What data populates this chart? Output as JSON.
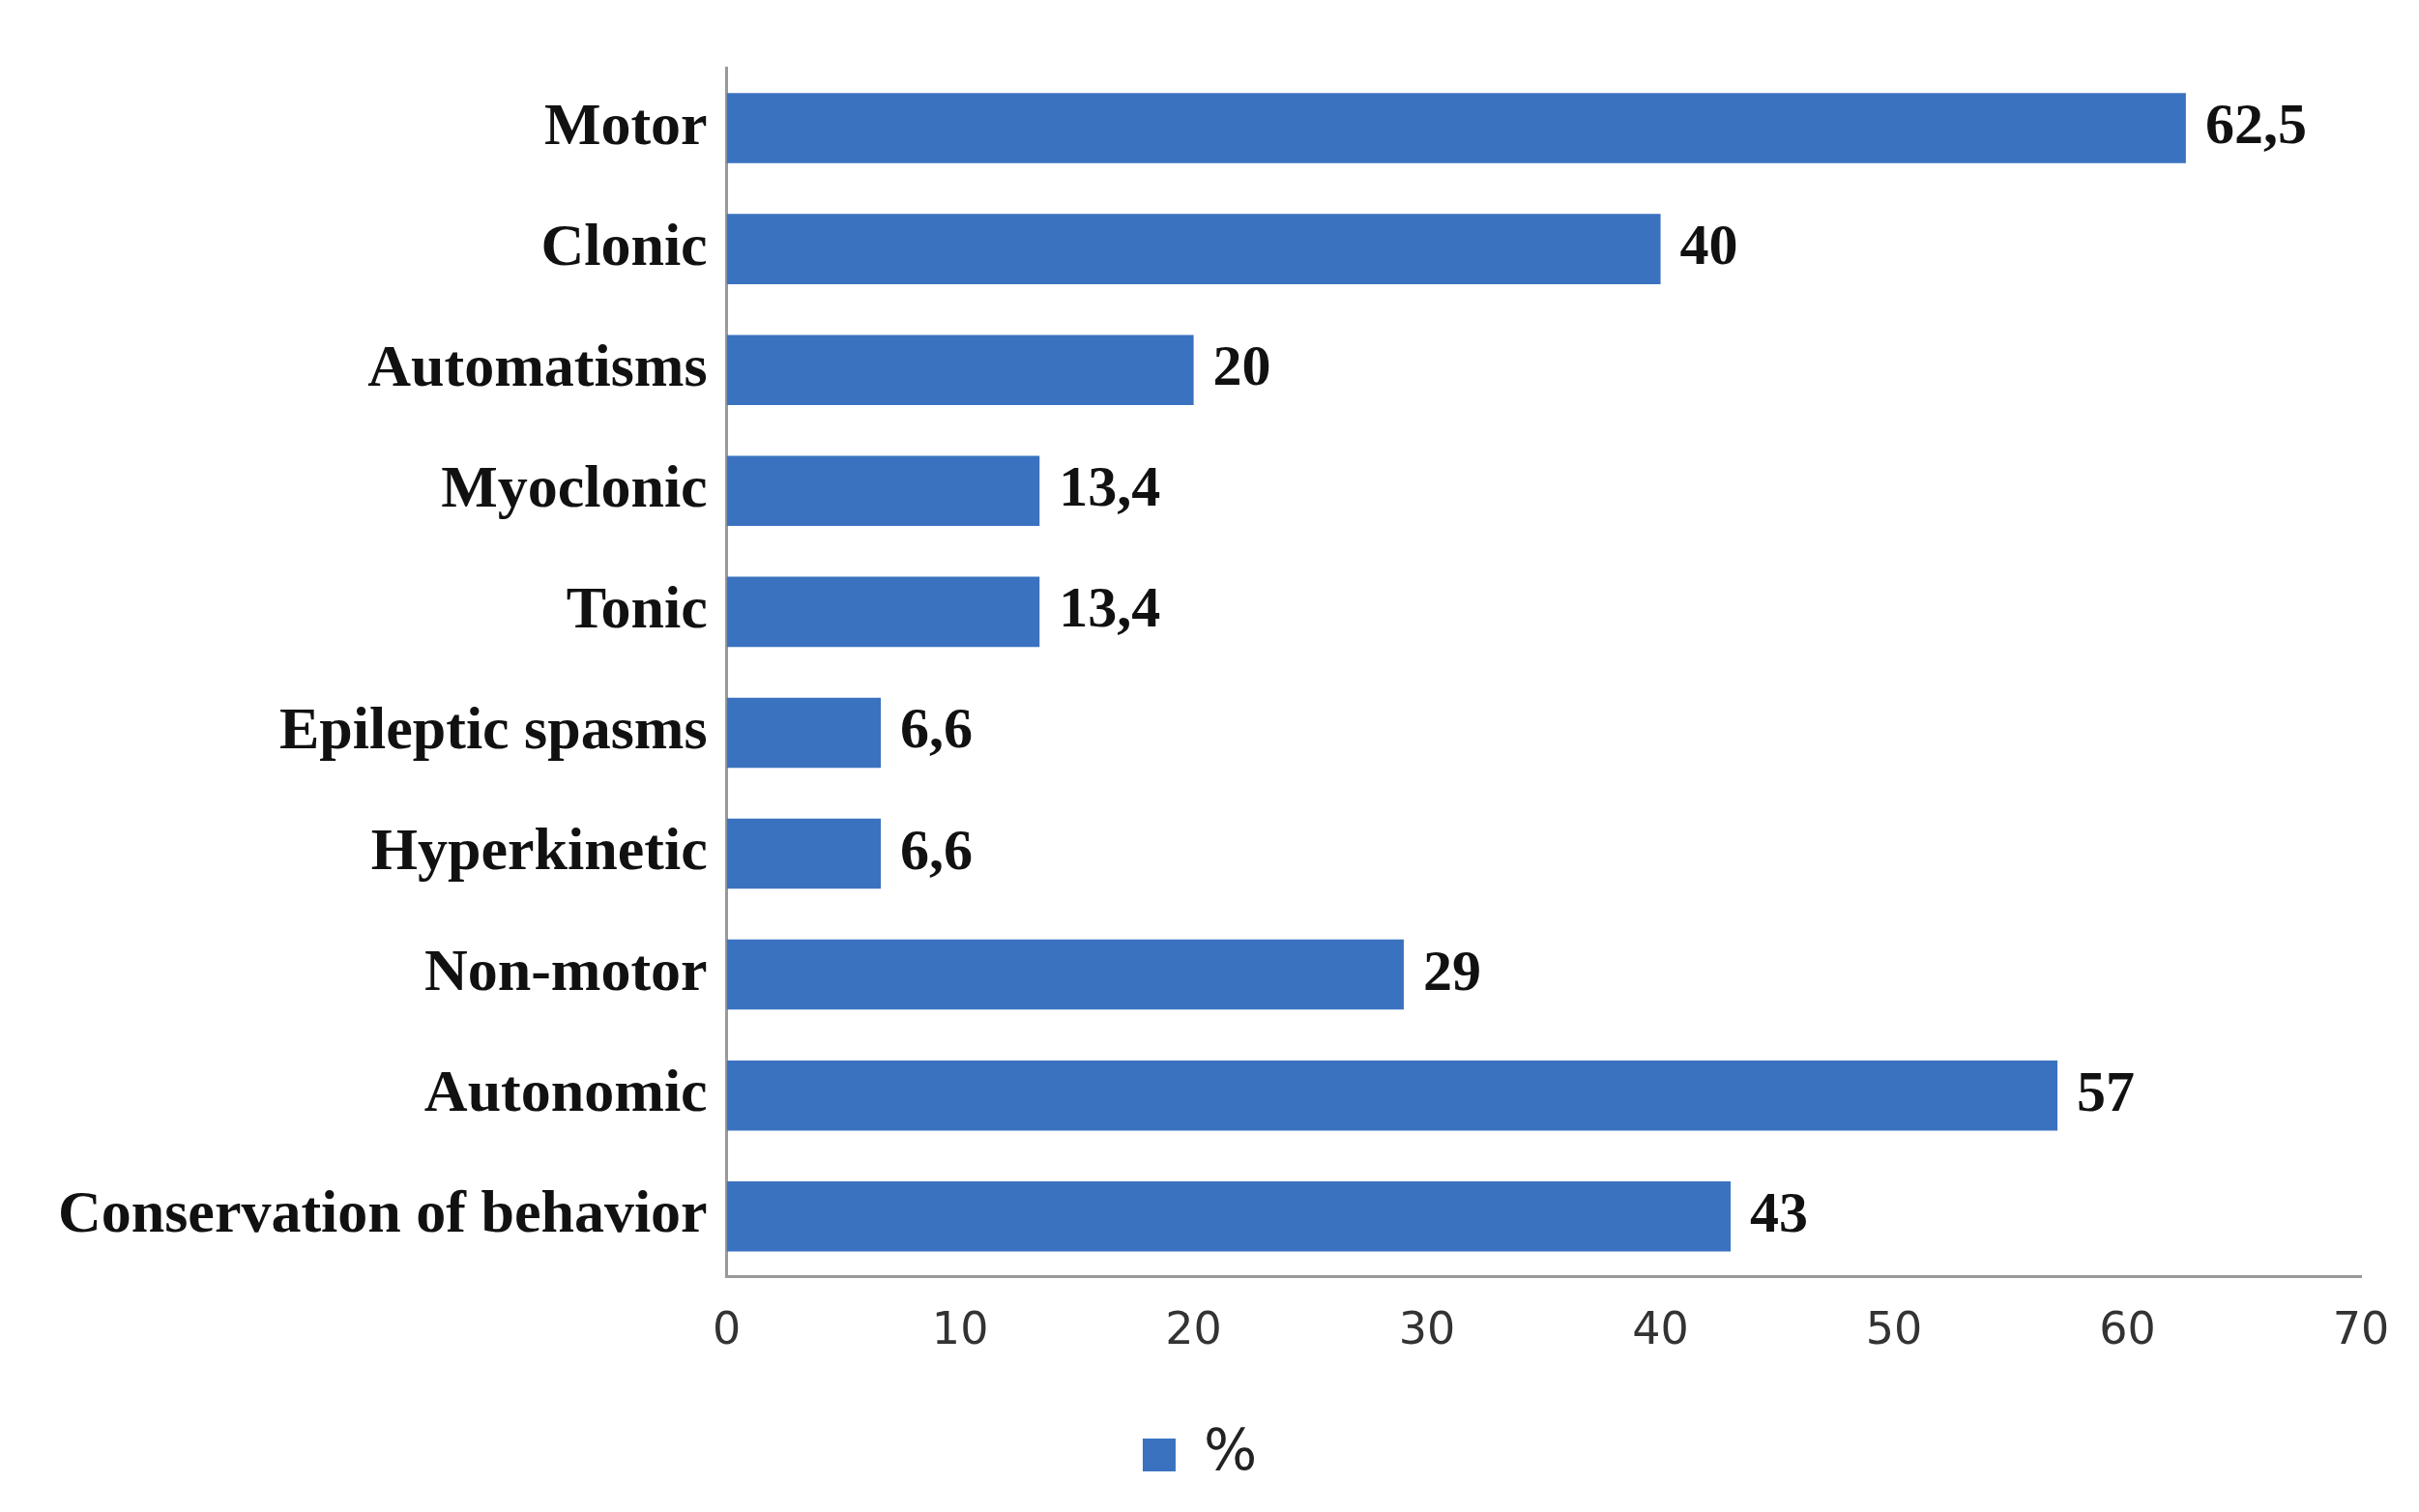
{
  "chart_data": {
    "type": "bar",
    "orientation": "horizontal",
    "categories": [
      "Motor",
      "Clonic",
      "Automatisms",
      "Myoclonic",
      "Tonic",
      "Epileptic spasms",
      "Hyperkinetic",
      "Non-motor",
      "Autonomic",
      "Conservation of behavior"
    ],
    "series": [
      {
        "name": "%",
        "color": "#3a72c0",
        "values": [
          62.5,
          40,
          20,
          13.4,
          13.4,
          6.6,
          6.6,
          29,
          57,
          43
        ],
        "value_labels": [
          "62,5",
          "40",
          "20",
          "13,4",
          "13,4",
          "6,6",
          "6,6",
          "29",
          "57",
          "43"
        ]
      }
    ],
    "xlim": [
      0,
      70
    ],
    "xticks": [
      0,
      10,
      20,
      30,
      40,
      50,
      60,
      70
    ],
    "grid": false,
    "legend": "bottom"
  }
}
